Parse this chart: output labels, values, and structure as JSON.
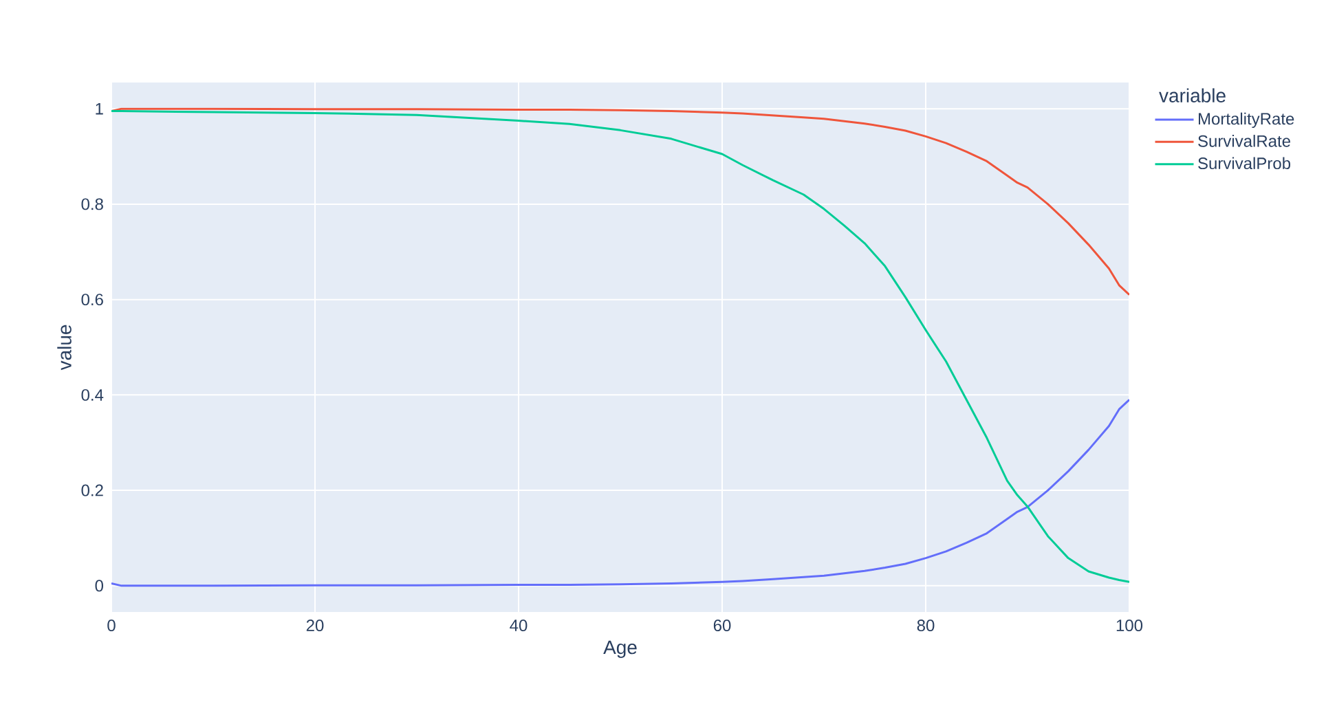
{
  "chart_data": {
    "type": "line",
    "xlabel": "Age",
    "ylabel": "value",
    "legend_title": "variable",
    "x": [
      0,
      1,
      5,
      10,
      20,
      30,
      40,
      45,
      50,
      55,
      60,
      62,
      65,
      68,
      70,
      72,
      74,
      76,
      78,
      80,
      82,
      84,
      86,
      88,
      89,
      90,
      92,
      94,
      96,
      98,
      99,
      100
    ],
    "series": [
      {
        "name": "MortalityRate",
        "color": "#636efa",
        "values": [
          0.005,
          0,
          0,
          0,
          0.001,
          0.001,
          0.002,
          0.002,
          0.003,
          0.005,
          0.008,
          0.01,
          0.014,
          0.018,
          0.021,
          0.026,
          0.031,
          0.038,
          0.046,
          0.058,
          0.072,
          0.09,
          0.11,
          0.14,
          0.155,
          0.165,
          0.2,
          0.24,
          0.285,
          0.335,
          0.37,
          0.39
        ]
      },
      {
        "name": "SurvivalRate",
        "color": "#ef553b",
        "values": [
          0.995,
          1,
          1,
          1,
          0.999,
          0.999,
          0.998,
          0.998,
          0.997,
          0.995,
          0.992,
          0.99,
          0.986,
          0.982,
          0.979,
          0.974,
          0.969,
          0.962,
          0.954,
          0.942,
          0.928,
          0.91,
          0.89,
          0.86,
          0.845,
          0.835,
          0.8,
          0.76,
          0.715,
          0.665,
          0.63,
          0.61
        ]
      },
      {
        "name": "SurvivalProb",
        "color": "#00cc96",
        "values": [
          0.995,
          0.995,
          0.994,
          0.993,
          0.991,
          0.987,
          0.975,
          0.968,
          0.955,
          0.937,
          0.905,
          0.882,
          0.85,
          0.82,
          0.79,
          0.755,
          0.718,
          0.67,
          0.605,
          0.536,
          0.47,
          0.39,
          0.31,
          0.22,
          0.19,
          0.166,
          0.104,
          0.058,
          0.03,
          0.017,
          0.012,
          0.008
        ]
      }
    ],
    "xlim": [
      0,
      100
    ],
    "ylim": [
      -0.055,
      1.055
    ],
    "xticks": [
      0,
      20,
      40,
      60,
      80,
      100
    ],
    "yticks": [
      0,
      0.2,
      0.4,
      0.6,
      0.8,
      1
    ],
    "grid": true,
    "legend": "top right",
    "marker": "none",
    "line_style": "solid"
  }
}
